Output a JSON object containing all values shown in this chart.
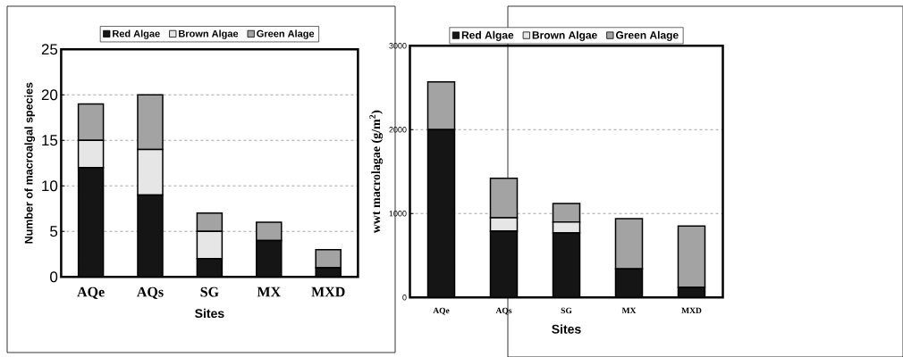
{
  "chart_data": [
    {
      "type": "bar",
      "stacked": true,
      "categories": [
        "AQe",
        "AQs",
        "SG",
        "MX",
        "MXD"
      ],
      "xlabel": "Sites",
      "ylabel": "Number of macroalgal species",
      "ylim": [
        0,
        25
      ],
      "yticks": [
        0,
        5,
        10,
        15,
        20,
        25
      ],
      "grid": "y",
      "legend": "top",
      "series": [
        {
          "name": "Red Algae",
          "color": "#151515",
          "values": [
            12,
            9,
            2,
            4,
            1
          ]
        },
        {
          "name": "Brown Algae",
          "color": "#e6e6e6",
          "values": [
            3,
            5,
            3,
            0,
            0
          ]
        },
        {
          "name": "Green Alage",
          "color": "#a3a3a3",
          "values": [
            4,
            6,
            2,
            2,
            2
          ]
        }
      ]
    },
    {
      "type": "bar",
      "stacked": true,
      "categories": [
        "AQe",
        "AQs",
        "SG",
        "MX",
        "MXD"
      ],
      "xlabel": "Sites",
      "ylabel": "wwt macrolagae (g/m$^{2}$)",
      "ylim": [
        0,
        3000
      ],
      "yticks": [
        0,
        1000,
        2000,
        3000
      ],
      "grid": "y",
      "legend": "top",
      "series": [
        {
          "name": "Red Algae",
          "color": "#151515",
          "values": [
            2000,
            790,
            770,
            340,
            120
          ]
        },
        {
          "name": "Brown Algae",
          "color": "#e6e6e6",
          "values": [
            0,
            160,
            130,
            0,
            0
          ]
        },
        {
          "name": "Green Alage",
          "color": "#a3a3a3",
          "values": [
            570,
            470,
            220,
            600,
            730
          ]
        }
      ]
    }
  ]
}
